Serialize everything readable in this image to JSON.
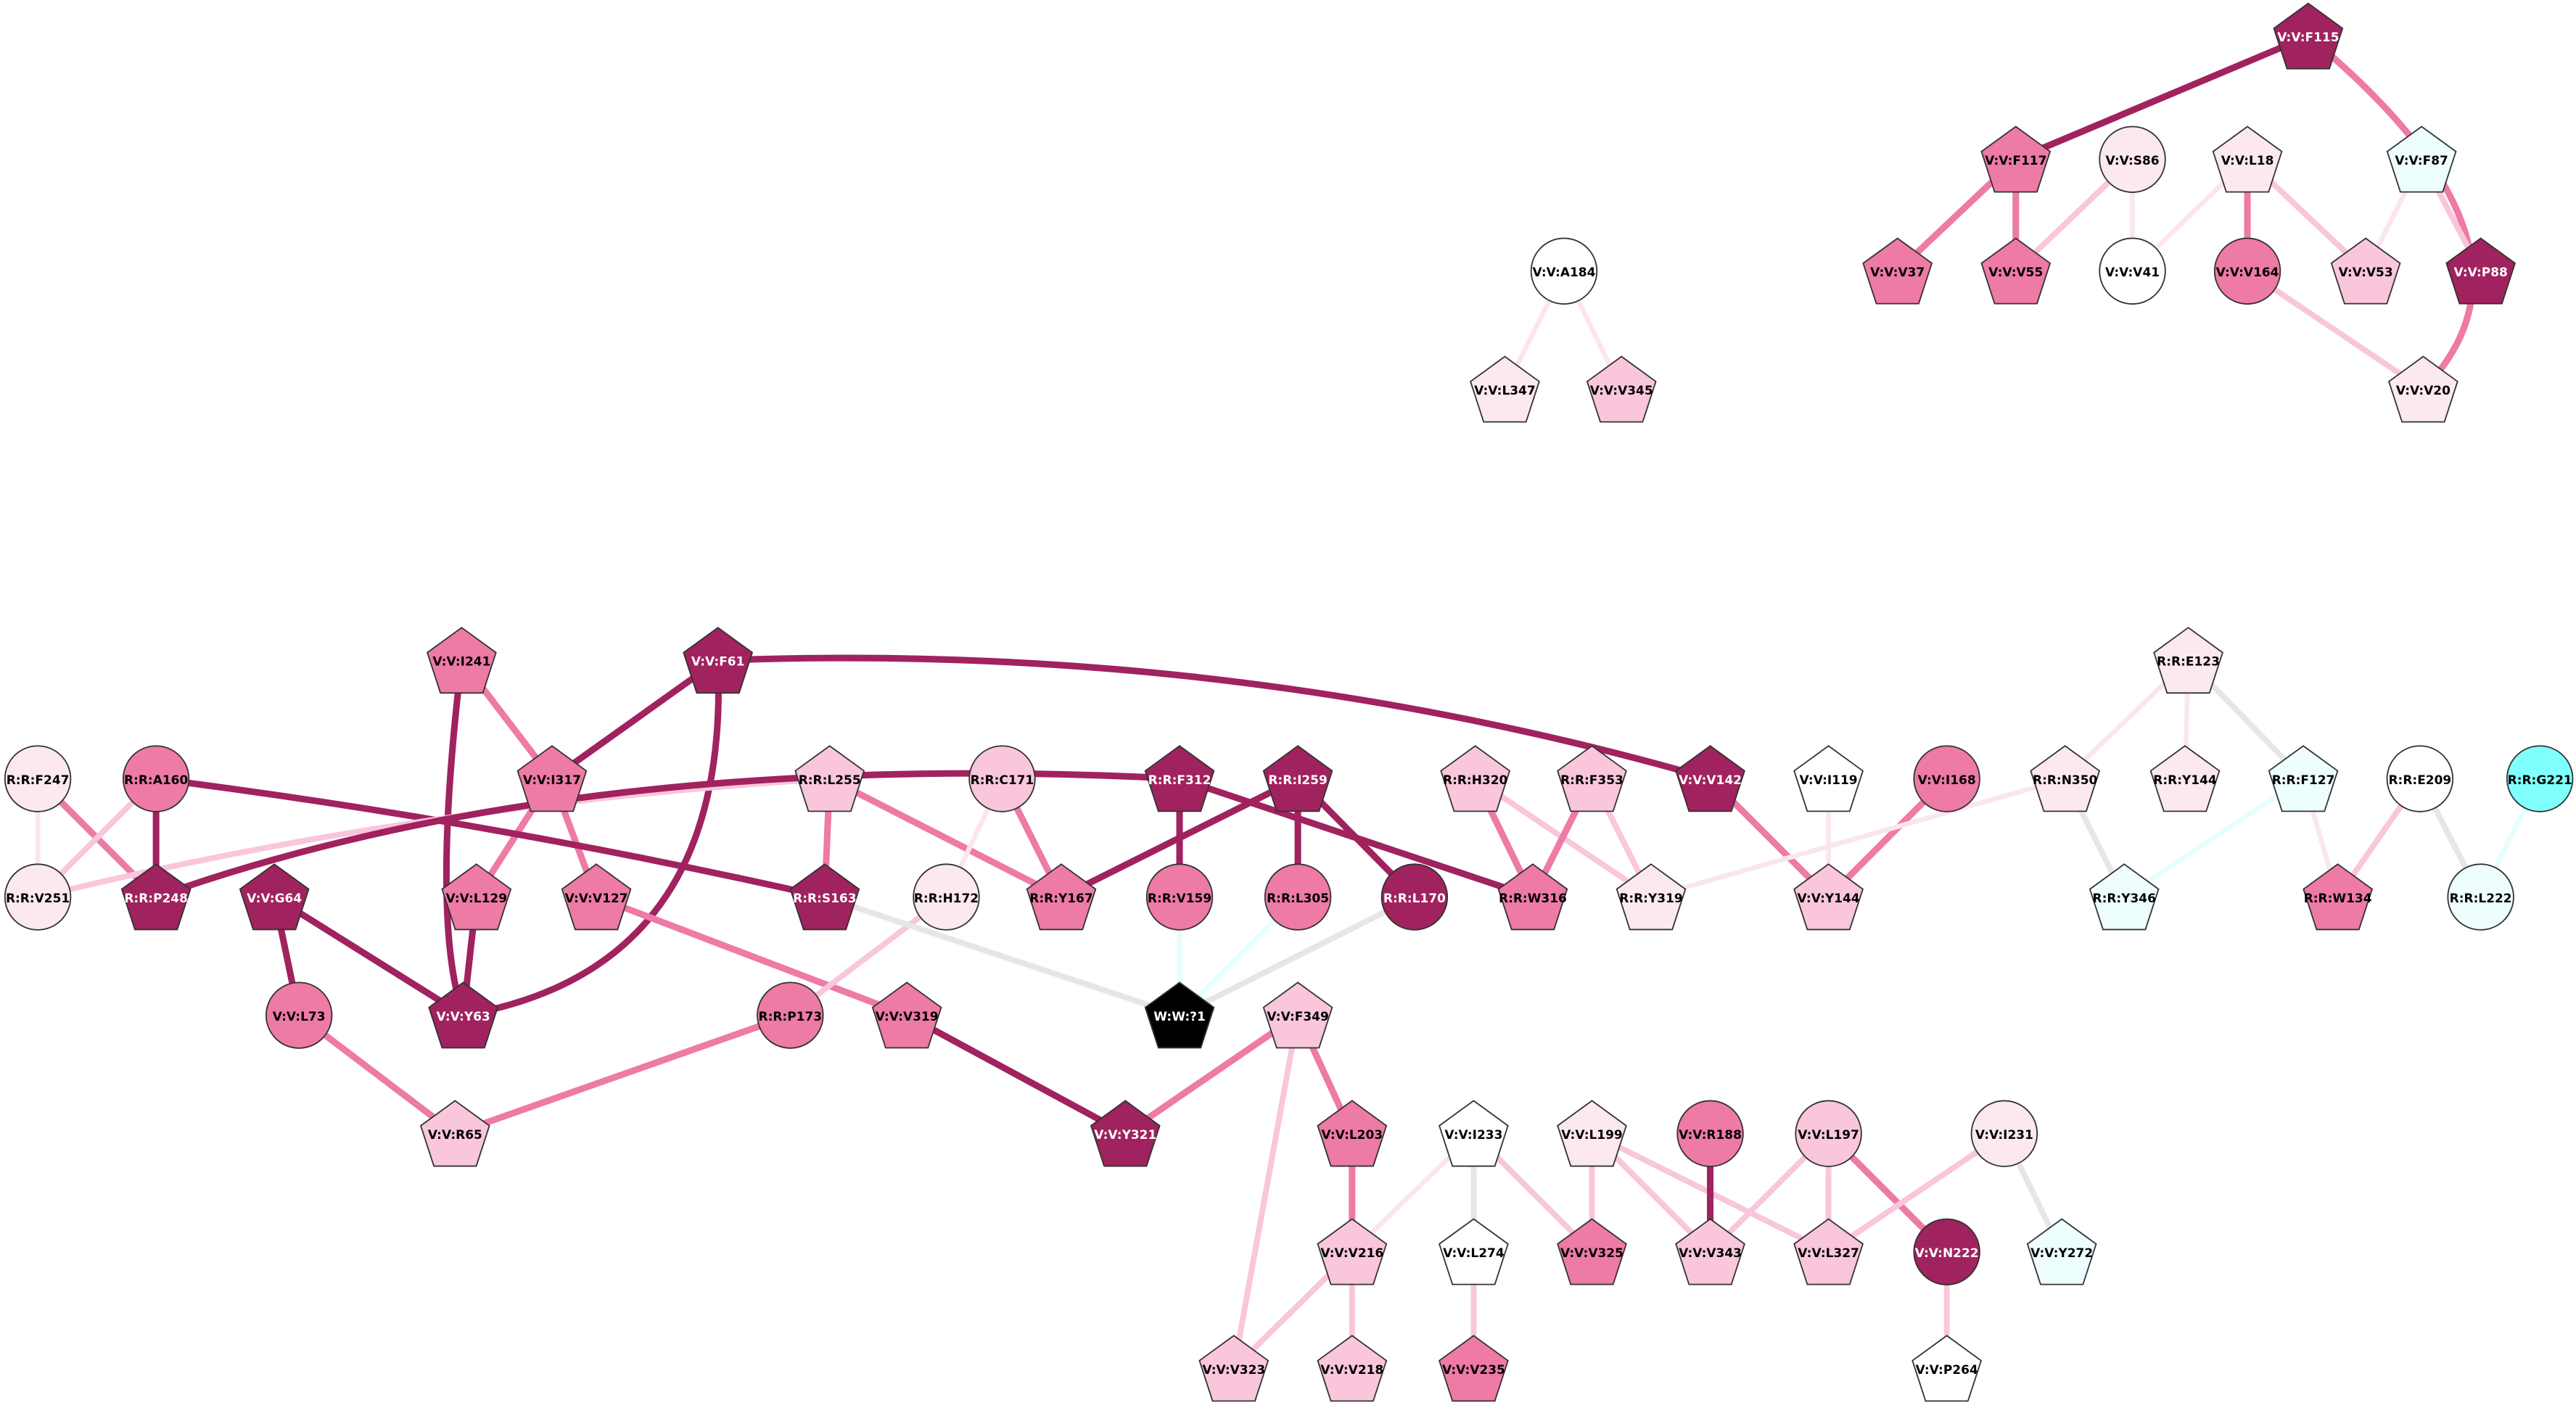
{
  "nodes": [
    {
      "label": "V:V:F115"
    },
    {
      "label": "V:V:F117"
    },
    {
      "label": "V:V:S86"
    },
    {
      "label": "V:V:L18"
    },
    {
      "label": "V:V:F87"
    },
    {
      "label": "V:V:V37"
    },
    {
      "label": "V:V:V55"
    },
    {
      "label": "V:V:V41"
    },
    {
      "label": "V:V:V164"
    },
    {
      "label": "V:V:V53"
    },
    {
      "label": "V:V:P88"
    },
    {
      "label": "V:V:V20"
    },
    {
      "label": "V:V:A184"
    },
    {
      "label": "V:V:L347"
    },
    {
      "label": "V:V:V345"
    },
    {
      "label": "V:V:I241"
    },
    {
      "label": "V:V:F61"
    },
    {
      "label": "R:R:E123"
    },
    {
      "label": "R:R:F247"
    },
    {
      "label": "R:R:A160"
    },
    {
      "label": "V:V:I317"
    },
    {
      "label": "R:R:L255"
    },
    {
      "label": "R:R:C171"
    },
    {
      "label": "R:R:F312"
    },
    {
      "label": "R:R:I259"
    },
    {
      "label": "R:R:H320"
    },
    {
      "label": "R:R:F353"
    },
    {
      "label": "V:V:V142"
    },
    {
      "label": "V:V:I119"
    },
    {
      "label": "V:V:I168"
    },
    {
      "label": "R:R:N350"
    },
    {
      "label": "R:R:Y144"
    },
    {
      "label": "R:R:F127"
    },
    {
      "label": "R:R:E209"
    },
    {
      "label": "R:R:G221"
    },
    {
      "label": "R:R:V251"
    },
    {
      "label": "R:R:P248"
    },
    {
      "label": "V:V:G64"
    },
    {
      "label": "V:V:L129"
    },
    {
      "label": "V:V:V127"
    },
    {
      "label": "R:R:S163"
    },
    {
      "label": "R:R:H172"
    },
    {
      "label": "R:R:Y167"
    },
    {
      "label": "R:R:V159"
    },
    {
      "label": "R:R:L305"
    },
    {
      "label": "R:R:L170"
    },
    {
      "label": "R:R:W316"
    },
    {
      "label": "R:R:Y319"
    },
    {
      "label": "V:V:Y144"
    },
    {
      "label": "R:R:Y346"
    },
    {
      "label": "R:R:W134"
    },
    {
      "label": "R:R:L222"
    },
    {
      "label": "V:V:L73"
    },
    {
      "label": "V:V:Y63"
    },
    {
      "label": "R:R:P173"
    },
    {
      "label": "V:V:V319"
    },
    {
      "label": "W:W:?1"
    },
    {
      "label": "V:V:F349"
    },
    {
      "label": "V:V:R65"
    },
    {
      "label": "V:V:Y321"
    },
    {
      "label": "V:V:L203"
    },
    {
      "label": "V:V:I233"
    },
    {
      "label": "V:V:L199"
    },
    {
      "label": "V:V:R188"
    },
    {
      "label": "V:V:L197"
    },
    {
      "label": "V:V:I231"
    },
    {
      "label": "V:V:V216"
    },
    {
      "label": "V:V:L274"
    },
    {
      "label": "V:V:V325"
    },
    {
      "label": "V:V:V343"
    },
    {
      "label": "V:V:L327"
    },
    {
      "label": "V:V:N222"
    },
    {
      "label": "V:V:Y272"
    },
    {
      "label": "V:V:V323"
    },
    {
      "label": "V:V:V218"
    },
    {
      "label": "V:V:V235"
    },
    {
      "label": "V:V:P264"
    }
  ]
}
